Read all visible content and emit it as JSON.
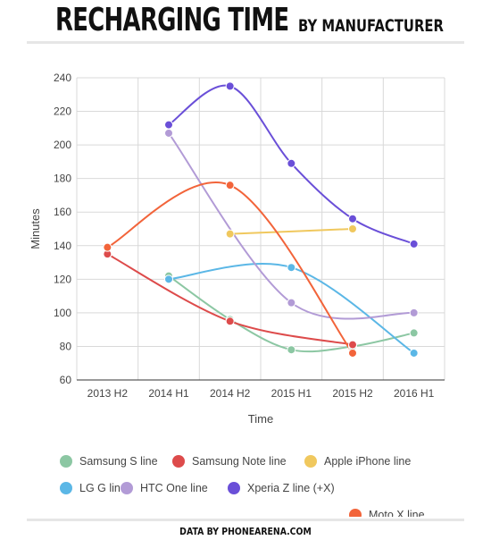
{
  "header": {
    "title_main": "RECHARGING TIME",
    "title_sub": "BY MANUFACTURER"
  },
  "footer": {
    "credit": "DATA BY PHONEARENA.COM"
  },
  "chart_data": {
    "type": "line",
    "title": "RECHARGING TIME BY MANUFACTURER",
    "xlabel": "Time",
    "ylabel": "Minutes",
    "categories": [
      "2013 H2",
      "2014 H1",
      "2014 H2",
      "2015 H1",
      "2015 H2",
      "2016 H1"
    ],
    "yticks": [
      60,
      80,
      100,
      120,
      140,
      160,
      180,
      200,
      220,
      240
    ],
    "ylim": [
      60,
      240
    ],
    "grid": true,
    "legend_position": "bottom",
    "series": [
      {
        "name": "Samsung S line",
        "color": "#8cc7a3",
        "values": [
          null,
          122,
          96,
          78,
          80,
          88
        ]
      },
      {
        "name": "Samsung Note line",
        "color": "#dd4b4b",
        "values": [
          135,
          null,
          95,
          null,
          81,
          null
        ]
      },
      {
        "name": "Apple iPhone line",
        "color": "#f0c85e",
        "values": [
          null,
          null,
          147,
          null,
          150,
          null
        ]
      },
      {
        "name": "LG G line",
        "color": "#5bb7e6",
        "values": [
          null,
          120,
          null,
          127,
          null,
          76
        ]
      },
      {
        "name": "HTC One line",
        "color": "#b29bd6",
        "values": [
          null,
          207,
          null,
          106,
          null,
          100
        ]
      },
      {
        "name": "Xperia Z line (+X)",
        "color": "#6a4fd8",
        "values": [
          null,
          212,
          235,
          189,
          156,
          141
        ]
      },
      {
        "name": "Moto X line",
        "color": "#f2643a",
        "values": [
          139,
          null,
          176,
          null,
          76,
          null
        ]
      }
    ]
  }
}
